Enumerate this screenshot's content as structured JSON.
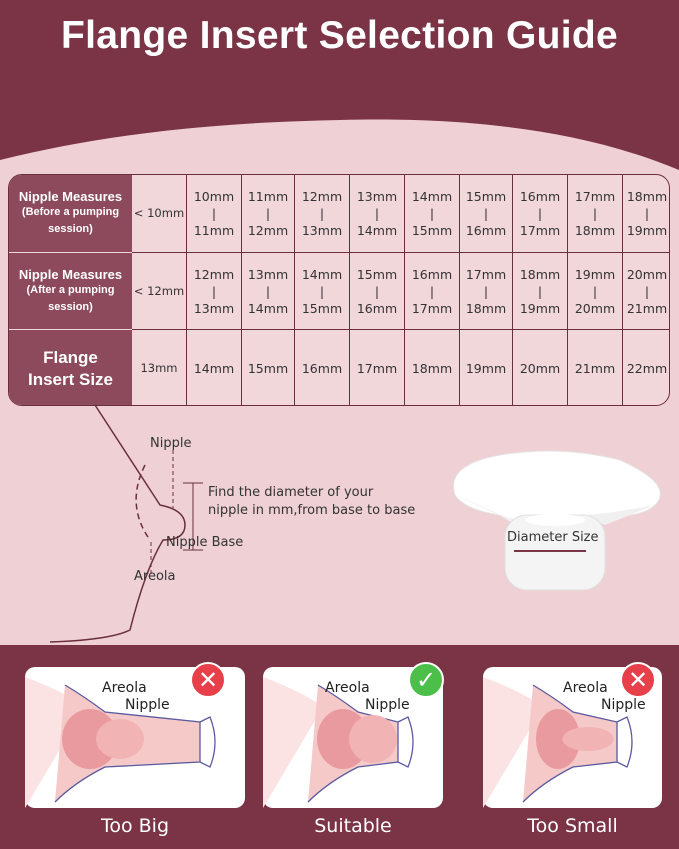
{
  "title": "Flange Insert Selection Guide",
  "table": {
    "rows": [
      {
        "label_main": "Nipple Measures",
        "label_sub": "(Before a pumping session)",
        "cells": [
          [
            "< 10mm"
          ],
          [
            "10mm",
            "|",
            "11mm"
          ],
          [
            "11mm",
            "|",
            "12mm"
          ],
          [
            "12mm",
            "|",
            "13mm"
          ],
          [
            "13mm",
            "|",
            "14mm"
          ],
          [
            "14mm",
            "|",
            "15mm"
          ],
          [
            "15mm",
            "|",
            "16mm"
          ],
          [
            "16mm",
            "|",
            "17mm"
          ],
          [
            "17mm",
            "|",
            "18mm"
          ],
          [
            "18mm",
            "|",
            "19mm"
          ]
        ]
      },
      {
        "label_main": "Nipple Measures",
        "label_sub": "(After a pumping session)",
        "cells": [
          [
            "< 12mm"
          ],
          [
            "12mm",
            "|",
            "13mm"
          ],
          [
            "13mm",
            "|",
            "14mm"
          ],
          [
            "14mm",
            "|",
            "15mm"
          ],
          [
            "15mm",
            "|",
            "16mm"
          ],
          [
            "16mm",
            "|",
            "17mm"
          ],
          [
            "17mm",
            "|",
            "18mm"
          ],
          [
            "18mm",
            "|",
            "19mm"
          ],
          [
            "19mm",
            "|",
            "20mm"
          ],
          [
            "20mm",
            "|",
            "21mm"
          ]
        ]
      },
      {
        "label_main": "Flange Insert Size",
        "label_sub": "",
        "cells": [
          [
            "13mm"
          ],
          [
            "14mm"
          ],
          [
            "15mm"
          ],
          [
            "16mm"
          ],
          [
            "17mm"
          ],
          [
            "18mm"
          ],
          [
            "19mm"
          ],
          [
            "20mm"
          ],
          [
            "21mm"
          ],
          [
            "22mm"
          ]
        ]
      }
    ]
  },
  "diagram": {
    "nipple": "Nipple",
    "instruction_1": "Find the diameter of your",
    "instruction_2": "nipple in mm,from base to base",
    "nipple_base": "Nipple Base",
    "areola": "Areola",
    "diameter": "Diameter Size"
  },
  "fits": [
    {
      "caption": "Too Big",
      "areola": "Areola",
      "nipple": "Nipple",
      "status": "x-icon",
      "color": "#e8404a"
    },
    {
      "caption": "Suitable",
      "areola": "Areola",
      "nipple": "Nipple",
      "status": "check-icon",
      "color": "#4cbf4a"
    },
    {
      "caption": "Too Small",
      "areola": "Areola",
      "nipple": "Nipple",
      "status": "x-icon",
      "color": "#e8404a"
    }
  ],
  "colors": {
    "maroon": "#7a3446",
    "header_cell": "#8c4a5c",
    "background": "#efd0d4"
  }
}
